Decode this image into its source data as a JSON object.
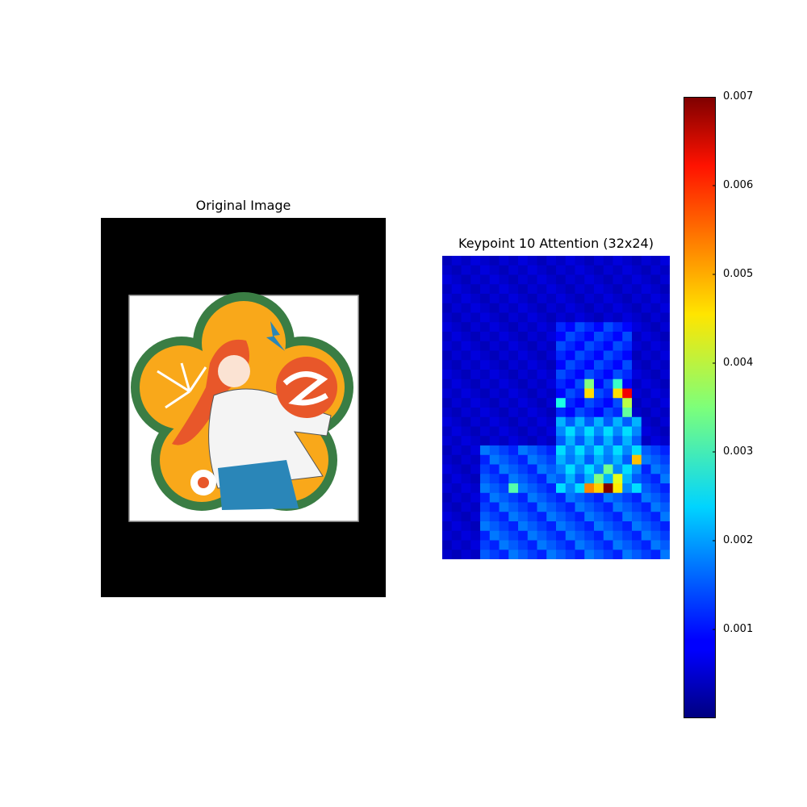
{
  "figure": {
    "left_title": "Original Image",
    "right_title": "Keypoint 10 Attention (32x24)"
  },
  "colors": {
    "background": "#ffffff",
    "pad": "#000000",
    "flower_green": "#3a7d44",
    "petal_orange": "#f9a81a",
    "hair_red": "#e8572a",
    "jeans_blue": "#2a86b8",
    "skin": "#fbe3d3"
  },
  "chart_data": {
    "type": "heatmap",
    "title": "Keypoint 10 Attention (32x24)",
    "rows": 32,
    "cols": 24,
    "colormap": "jet",
    "vmin": 0.0,
    "vmax": 0.007,
    "colorbar_ticks": [
      "0.001",
      "0.002",
      "0.003",
      "0.004",
      "0.005",
      "0.006",
      "0.007"
    ],
    "colorbar_tick_values": [
      0.001,
      0.002,
      0.003,
      0.004,
      0.005,
      0.006,
      0.007
    ],
    "background_value": 0.0004,
    "hotspots": [
      {
        "row": 24,
        "col": 17,
        "value": 0.007
      },
      {
        "row": 14,
        "col": 19,
        "value": 0.0062
      },
      {
        "row": 24,
        "col": 15,
        "value": 0.0052
      },
      {
        "row": 24,
        "col": 16,
        "value": 0.0047
      },
      {
        "row": 21,
        "col": 20,
        "value": 0.0048
      },
      {
        "row": 14,
        "col": 15,
        "value": 0.0046
      },
      {
        "row": 14,
        "col": 18,
        "value": 0.0046
      },
      {
        "row": 24,
        "col": 18,
        "value": 0.0045
      },
      {
        "row": 23,
        "col": 18,
        "value": 0.0042
      },
      {
        "row": 15,
        "col": 19,
        "value": 0.0039
      },
      {
        "row": 13,
        "col": 15,
        "value": 0.0035
      },
      {
        "row": 23,
        "col": 16,
        "value": 0.0035
      },
      {
        "row": 22,
        "col": 17,
        "value": 0.0034
      },
      {
        "row": 24,
        "col": 7,
        "value": 0.0032
      },
      {
        "row": 16,
        "col": 19,
        "value": 0.0033
      },
      {
        "row": 13,
        "col": 18,
        "value": 0.003
      },
      {
        "row": 15,
        "col": 12,
        "value": 0.0028
      }
    ],
    "warm_region": {
      "row_start": 17,
      "row_end": 25,
      "col_start": 12,
      "col_end": 21,
      "value": 0.0024
    },
    "diffuse_region": {
      "row_start": 20,
      "row_end": 32,
      "col_start": 4,
      "col_end": 24,
      "value": 0.0017
    },
    "arc_region": {
      "row_start": 7,
      "row_end": 18,
      "col_start": 12,
      "col_end": 20,
      "value": 0.0014
    }
  }
}
